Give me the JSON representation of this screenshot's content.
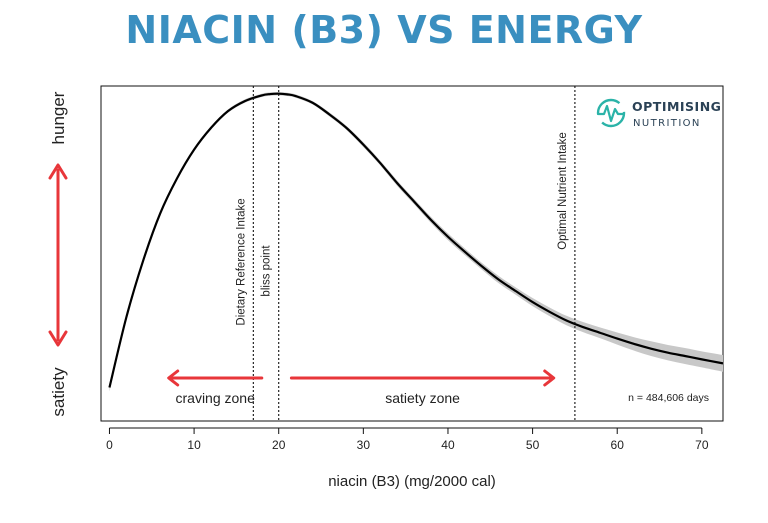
{
  "header": {
    "title": "NIACIN (B3) VS ENERGY"
  },
  "logo": {
    "line1": "OPTIMISING",
    "line2": "NUTRITION",
    "icon": "heartbeat-wave-icon",
    "color": "#2bb3a8"
  },
  "colors": {
    "title": "#3a8fc0",
    "arrow": "#e8363a",
    "curve": "#000000",
    "band": "#c8c8c8"
  },
  "chart_data": {
    "type": "line",
    "title": "NIACIN (B3) VS ENERGY",
    "xlabel": "niacin (B3) (mg/2000 cal)",
    "ylabel_top": "hunger",
    "ylabel_bottom": "satiety",
    "xlim": [
      -1,
      72.5
    ],
    "ylim": [
      0,
      100
    ],
    "x_ticks": [
      0,
      10,
      20,
      30,
      40,
      50,
      60,
      70
    ],
    "x_tick_labels": [
      "0",
      "10",
      "20",
      "30",
      "40",
      "50",
      "60",
      "70"
    ],
    "y_tick_labels_shown": false,
    "series": [
      {
        "name": "energy",
        "x": [
          0,
          2,
          4,
          6,
          8,
          10,
          12,
          14,
          16,
          18,
          19,
          20,
          21,
          22,
          24,
          26,
          28,
          30,
          32,
          34,
          36,
          38,
          40,
          42,
          44,
          46,
          48,
          50,
          52,
          54,
          56,
          58,
          60,
          62,
          64,
          66,
          68,
          70,
          72.5
        ],
        "y": [
          10,
          31,
          48,
          62,
          72.5,
          81,
          87.5,
          92.5,
          95.5,
          97.2,
          97.6,
          97.7,
          97.5,
          97,
          95,
          91.5,
          87.5,
          82.5,
          77,
          71,
          65.5,
          60,
          55,
          50.5,
          46.2,
          42.2,
          38.8,
          35.5,
          32.6,
          30,
          28,
          26.3,
          24.6,
          23,
          21.6,
          20.4,
          19.4,
          18.4,
          17.2
        ],
        "ci_halfwidth": [
          1.2,
          0.9,
          0.7,
          0.6,
          0.5,
          0.5,
          0.5,
          0.5,
          0.5,
          0.5,
          0.5,
          0.5,
          0.5,
          0.5,
          0.5,
          0.6,
          0.6,
          0.7,
          0.7,
          0.8,
          0.8,
          0.9,
          1.0,
          1.0,
          1.0,
          1.1,
          1.1,
          1.2,
          1.3,
          1.4,
          1.5,
          1.6,
          1.8,
          2.0,
          2.2,
          2.3,
          2.4,
          2.4,
          2.5
        ]
      }
    ],
    "vlines": [
      {
        "x": 17,
        "label": "Dietary Reference Intake"
      },
      {
        "x": 20,
        "label": "bliss point"
      },
      {
        "x": 55,
        "label": "Optimal Nutrient Intake"
      }
    ],
    "zones": [
      {
        "label": "craving zone",
        "from": 18,
        "to": 7
      },
      {
        "label": "satiety zone",
        "from": 21.5,
        "to": 52.5
      }
    ],
    "annotation": "n = 484,606 days",
    "grid": false
  }
}
